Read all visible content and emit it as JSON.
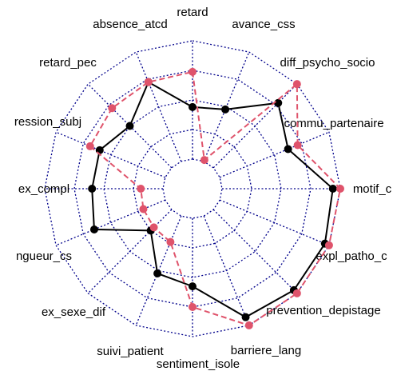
{
  "chart_data": {
    "type": "radar",
    "categories": [
      "retard",
      "avance_css",
      "diff_psycho_socio",
      "commu_partenaire",
      "motif_c",
      "expl_patho_c",
      "prevention_depistage",
      "barriere_lang",
      "sentiment_isole",
      "suivi_patient",
      "ex_sexe_dif",
      "ngueur_cs",
      "ex_compl",
      "ression_subj",
      "retard_pec",
      "absence_atcd"
    ],
    "ylim": [
      0,
      5
    ],
    "yticks": [
      1,
      2,
      3,
      4,
      5
    ],
    "grid": true,
    "grid_color": "#00008b",
    "series": [
      {
        "color": "#000000",
        "values": [
          2.76,
          2.9,
          4.1,
          3.5,
          4.75,
          4.85,
          4.85,
          4.7,
          3.3,
          3.1,
          2.0,
          3.6,
          3.4,
          3.4,
          3.0,
          3.9
        ]
      },
      {
        "color": "#df536b",
        "dashed": true,
        "values": [
          3.95,
          1.05,
          5,
          3.85,
          5,
          5,
          5,
          5,
          4,
          1.95,
          1.85,
          1.8,
          1.75,
          3.75,
          3.85,
          3.9
        ]
      }
    ]
  }
}
